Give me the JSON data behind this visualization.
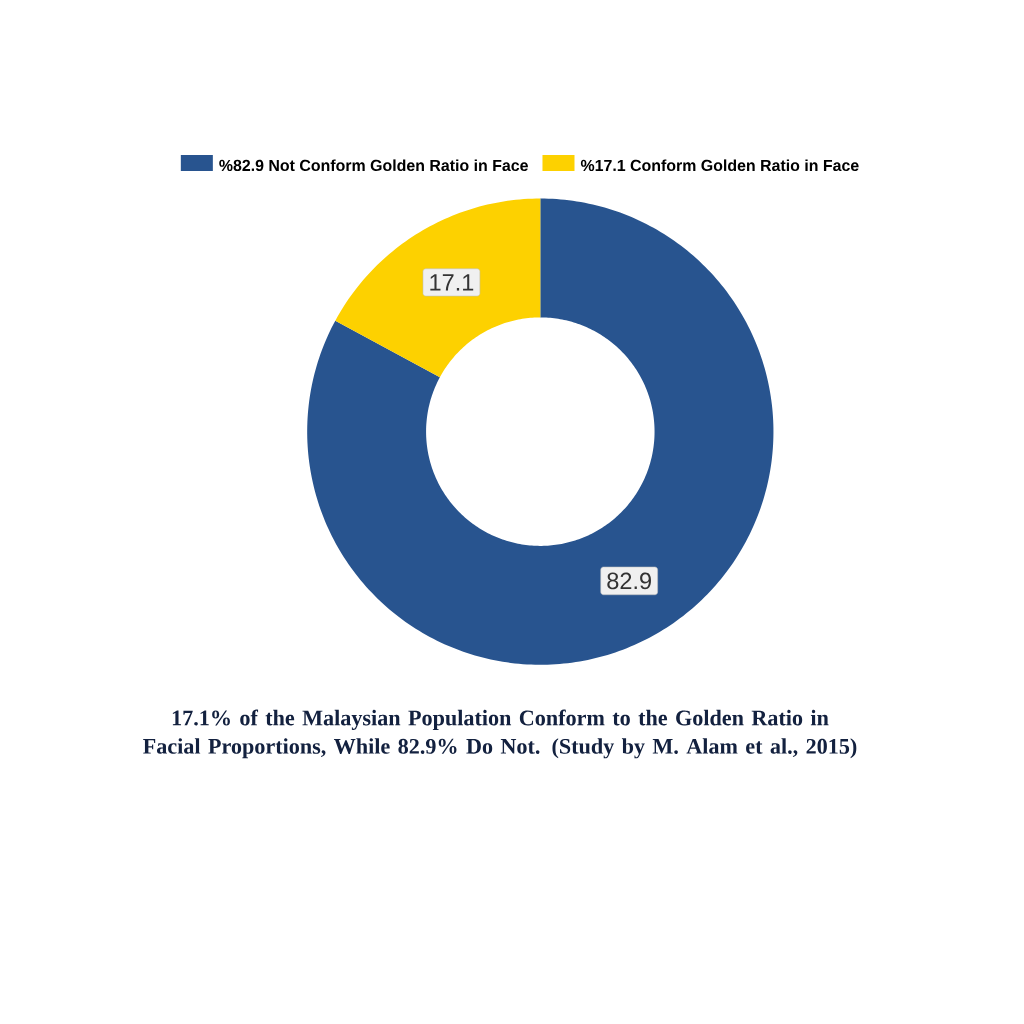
{
  "chart_data": {
    "type": "donut",
    "title": "17.1% of the Malaysian Population Conform to the Golden Ratio in Facial Proportions, While 82.9% Do Not. (Study by M. Alam et al., 2015)",
    "categories": [
      "%82.9 Not Conform Golden Ratio in Face",
      "%17.1 Conform Golden Ratio in Face"
    ],
    "values": [
      82.9,
      17.1
    ],
    "colors": [
      "#28548f",
      "#fdd100"
    ],
    "data_labels": true,
    "legend": "top"
  }
}
